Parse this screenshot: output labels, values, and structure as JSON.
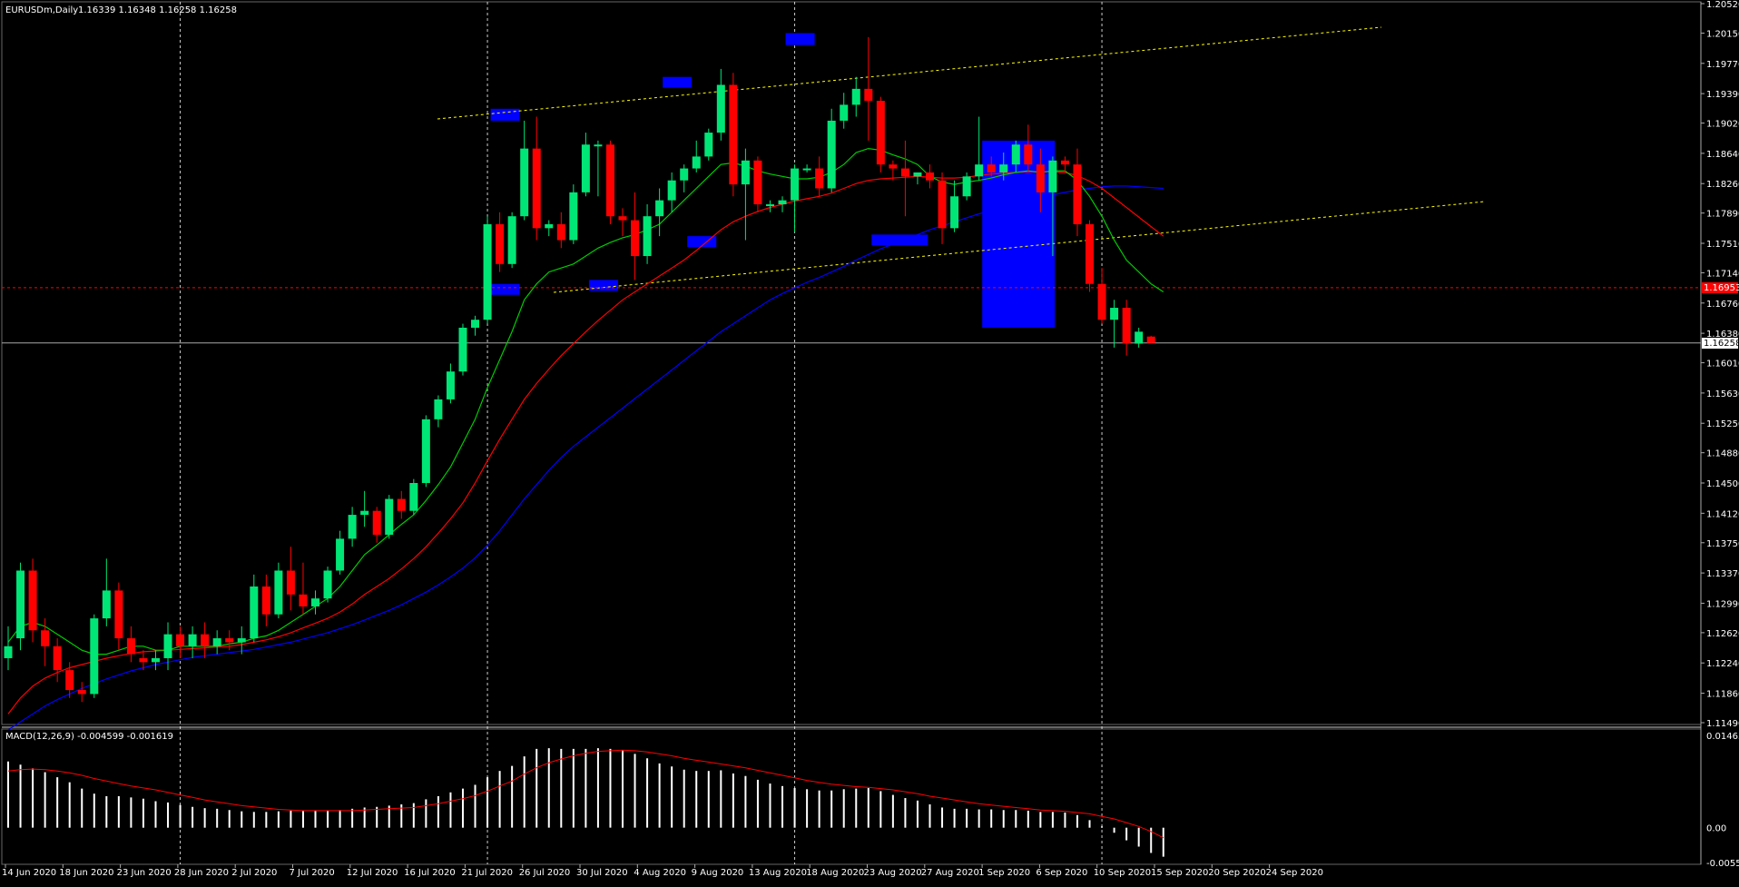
{
  "header": {
    "symbol_line": "EURUSDm,Daily",
    "ohlc_line": "1.16339 1.16348 1.16258 1.16258"
  },
  "macd": {
    "label": "MACD(12,26,9) -0.004599 -0.001619",
    "axis_labels": [
      "0.014637",
      "0.00",
      "-0.005515"
    ],
    "range": [
      -0.005515,
      0.014637
    ]
  },
  "price_tags": {
    "red_line": "1.16953",
    "current": "1.16258"
  },
  "colors": {
    "background": "#000000",
    "bull_candle": "#00e676",
    "bear_candle": "#ff0000",
    "ma_fast": "#00cc00",
    "ma_medium": "#ff0000",
    "ma_slow": "#0000ff",
    "trendline": "#ffff00",
    "highlight": "#0000ff",
    "grid_vertical": "#ffffff",
    "macd_histogram": "#ffffff",
    "macd_signal": "#ff0000"
  },
  "chart_data": {
    "type": "candlestick",
    "instrument": "EURUSDm",
    "timeframe": "Daily",
    "ylim": [
      1.1149,
      1.2052
    ],
    "y_ticks": [
      "1.20520",
      "1.20150",
      "1.19770",
      "1.19390",
      "1.19020",
      "1.18640",
      "1.18260",
      "1.17890",
      "1.17510",
      "1.17140",
      "1.16760",
      "1.16380",
      "1.16010",
      "1.15630",
      "1.15250",
      "1.14880",
      "1.14500",
      "1.14120",
      "1.13750",
      "1.13370",
      "1.12990",
      "1.12620",
      "1.12240",
      "1.11860",
      "1.11490"
    ],
    "x_labels": [
      "14 Jun 2020",
      "18 Jun 2020",
      "23 Jun 2020",
      "28 Jun 2020",
      "2 Jul 2020",
      "7 Jul 2020",
      "12 Jul 2020",
      "16 Jul 2020",
      "21 Jul 2020",
      "26 Jul 2020",
      "30 Jul 2020",
      "4 Aug 2020",
      "9 Aug 2020",
      "13 Aug 2020",
      "18 Aug 2020",
      "23 Aug 2020",
      "27 Aug 2020",
      "1 Sep 2020",
      "6 Sep 2020",
      "10 Sep 2020",
      "15 Sep 2020",
      "20 Sep 2020",
      "24 Sep 2020"
    ],
    "candles": [
      [
        1.123,
        1.127,
        1.1215,
        1.1245
      ],
      [
        1.1255,
        1.135,
        1.124,
        1.134
      ],
      [
        1.134,
        1.1355,
        1.125,
        1.1265
      ],
      [
        1.1265,
        1.128,
        1.122,
        1.1245
      ],
      [
        1.1245,
        1.1255,
        1.12,
        1.1215
      ],
      [
        1.1215,
        1.1225,
        1.118,
        1.119
      ],
      [
        1.119,
        1.12,
        1.1175,
        1.1185
      ],
      [
        1.1185,
        1.1285,
        1.118,
        1.128
      ],
      [
        1.128,
        1.1355,
        1.127,
        1.1315
      ],
      [
        1.1315,
        1.1325,
        1.124,
        1.1255
      ],
      [
        1.1255,
        1.127,
        1.1225,
        1.1235
      ],
      [
        1.123,
        1.124,
        1.1215,
        1.1225
      ],
      [
        1.1225,
        1.124,
        1.1215,
        1.123
      ],
      [
        1.123,
        1.1275,
        1.1215,
        1.126
      ],
      [
        1.126,
        1.127,
        1.123,
        1.1245
      ],
      [
        1.1245,
        1.127,
        1.123,
        1.126
      ],
      [
        1.126,
        1.1275,
        1.123,
        1.1245
      ],
      [
        1.1245,
        1.1265,
        1.1235,
        1.1255
      ],
      [
        1.1255,
        1.1265,
        1.124,
        1.125
      ],
      [
        1.125,
        1.127,
        1.1235,
        1.1255
      ],
      [
        1.1255,
        1.1335,
        1.125,
        1.132
      ],
      [
        1.132,
        1.1335,
        1.127,
        1.1285
      ],
      [
        1.1285,
        1.135,
        1.128,
        1.134
      ],
      [
        1.134,
        1.137,
        1.129,
        1.131
      ],
      [
        1.131,
        1.135,
        1.1285,
        1.1295
      ],
      [
        1.1295,
        1.1315,
        1.1285,
        1.1305
      ],
      [
        1.1305,
        1.1345,
        1.13,
        1.134
      ],
      [
        1.134,
        1.139,
        1.1335,
        1.138
      ],
      [
        1.138,
        1.142,
        1.137,
        1.141
      ],
      [
        1.141,
        1.144,
        1.1395,
        1.1415
      ],
      [
        1.1415,
        1.142,
        1.1375,
        1.1385
      ],
      [
        1.1385,
        1.1435,
        1.138,
        1.143
      ],
      [
        1.143,
        1.144,
        1.1405,
        1.1415
      ],
      [
        1.1415,
        1.1455,
        1.141,
        1.145
      ],
      [
        1.145,
        1.1535,
        1.1445,
        1.153
      ],
      [
        1.153,
        1.156,
        1.152,
        1.1555
      ],
      [
        1.1555,
        1.16,
        1.155,
        1.159
      ],
      [
        1.159,
        1.165,
        1.1585,
        1.1645
      ],
      [
        1.1645,
        1.166,
        1.1635,
        1.1655
      ],
      [
        1.1655,
        1.1785,
        1.165,
        1.1775
      ],
      [
        1.1775,
        1.179,
        1.1715,
        1.1725
      ],
      [
        1.1725,
        1.179,
        1.172,
        1.1785
      ],
      [
        1.1785,
        1.1905,
        1.178,
        1.187
      ],
      [
        1.187,
        1.191,
        1.1755,
        1.177
      ],
      [
        1.177,
        1.178,
        1.176,
        1.1775
      ],
      [
        1.1775,
        1.179,
        1.1745,
        1.1755
      ],
      [
        1.1755,
        1.1825,
        1.175,
        1.1815
      ],
      [
        1.1815,
        1.189,
        1.181,
        1.1875
      ],
      [
        1.1875,
        1.188,
        1.181,
        1.1875
      ],
      [
        1.1875,
        1.188,
        1.1775,
        1.1785
      ],
      [
        1.1785,
        1.1795,
        1.176,
        1.178
      ],
      [
        1.178,
        1.1815,
        1.1705,
        1.1735
      ],
      [
        1.1735,
        1.18,
        1.1725,
        1.1785
      ],
      [
        1.1785,
        1.182,
        1.176,
        1.1805
      ],
      [
        1.1805,
        1.184,
        1.179,
        1.183
      ],
      [
        1.183,
        1.185,
        1.1815,
        1.1845
      ],
      [
        1.1845,
        1.188,
        1.184,
        1.186
      ],
      [
        1.186,
        1.1895,
        1.1855,
        1.189
      ],
      [
        1.189,
        1.197,
        1.188,
        1.195
      ],
      [
        1.195,
        1.1965,
        1.181,
        1.1825
      ],
      [
        1.1825,
        1.187,
        1.1755,
        1.1855
      ],
      [
        1.1855,
        1.186,
        1.179,
        1.18
      ],
      [
        1.18,
        1.1805,
        1.179,
        1.18
      ],
      [
        1.18,
        1.181,
        1.179,
        1.1805
      ],
      [
        1.1805,
        1.185,
        1.1765,
        1.1845
      ],
      [
        1.1845,
        1.185,
        1.184,
        1.1845
      ],
      [
        1.1845,
        1.186,
        1.181,
        1.182
      ],
      [
        1.182,
        1.192,
        1.1815,
        1.1905
      ],
      [
        1.1905,
        1.194,
        1.1895,
        1.1925
      ],
      [
        1.1925,
        1.196,
        1.191,
        1.1945
      ],
      [
        1.1945,
        1.201,
        1.188,
        1.193
      ],
      [
        1.193,
        1.1935,
        1.184,
        1.185
      ],
      [
        1.185,
        1.1855,
        1.183,
        1.1845
      ],
      [
        1.1845,
        1.188,
        1.1785,
        1.1835
      ],
      [
        1.1835,
        1.184,
        1.1825,
        1.184
      ],
      [
        1.184,
        1.185,
        1.182,
        1.183
      ],
      [
        1.183,
        1.184,
        1.175,
        1.177
      ],
      [
        1.177,
        1.183,
        1.1765,
        1.181
      ],
      [
        1.181,
        1.184,
        1.1805,
        1.1835
      ],
      [
        1.1835,
        1.191,
        1.183,
        1.185
      ],
      [
        1.185,
        1.186,
        1.1835,
        1.184
      ],
      [
        1.184,
        1.1865,
        1.183,
        1.185
      ],
      [
        1.185,
        1.188,
        1.184,
        1.1875
      ],
      [
        1.1875,
        1.19,
        1.184,
        1.185
      ],
      [
        1.185,
        1.187,
        1.179,
        1.1815
      ],
      [
        1.1815,
        1.186,
        1.1735,
        1.1855
      ],
      [
        1.1855,
        1.186,
        1.184,
        1.185
      ],
      [
        1.185,
        1.187,
        1.176,
        1.1775
      ],
      [
        1.1775,
        1.178,
        1.169,
        1.17
      ],
      [
        1.17,
        1.172,
        1.165,
        1.1655
      ],
      [
        1.1655,
        1.168,
        1.162,
        1.167
      ],
      [
        1.167,
        1.168,
        1.161,
        1.1625
      ],
      [
        1.1625,
        1.1645,
        1.162,
        1.164
      ],
      [
        1.16339,
        1.16348,
        1.16258,
        1.16258
      ]
    ],
    "ma_fast": [
      1.125,
      1.127,
      1.1275,
      1.127,
      1.126,
      1.125,
      1.124,
      1.1235,
      1.1235,
      1.124,
      1.1245,
      1.1245,
      1.124,
      1.124,
      1.1245,
      1.1245,
      1.1245,
      1.1245,
      1.1248,
      1.125,
      1.1255,
      1.1258,
      1.1265,
      1.1275,
      1.1285,
      1.1295,
      1.1305,
      1.132,
      1.134,
      1.136,
      1.1372,
      1.1385,
      1.1398,
      1.141,
      1.1428,
      1.1448,
      1.147,
      1.15,
      1.153,
      1.157,
      1.1605,
      1.164,
      1.168,
      1.17,
      1.1715,
      1.172,
      1.1725,
      1.1735,
      1.1745,
      1.1752,
      1.1758,
      1.1762,
      1.1768,
      1.1775,
      1.179,
      1.1805,
      1.182,
      1.1835,
      1.185,
      1.1852,
      1.1848,
      1.1842,
      1.1838,
      1.1835,
      1.1832,
      1.1832,
      1.1834,
      1.184,
      1.185,
      1.1865,
      1.187,
      1.1868,
      1.1862,
      1.1857,
      1.185,
      1.1835,
      1.1828,
      1.1825,
      1.1828,
      1.183,
      1.1833,
      1.1837,
      1.184,
      1.1842,
      1.184,
      1.1842,
      1.1842,
      1.183,
      1.181,
      1.1785,
      1.1755,
      1.173,
      1.1715,
      1.17,
      1.169
    ],
    "ma_medium": [
      1.116,
      1.118,
      1.1195,
      1.1205,
      1.1212,
      1.1218,
      1.1222,
      1.1226,
      1.123,
      1.1233,
      1.1236,
      1.1238,
      1.1239,
      1.124,
      1.1241,
      1.1242,
      1.1243,
      1.1244,
      1.1245,
      1.1247,
      1.125,
      1.1253,
      1.1257,
      1.1262,
      1.1268,
      1.1274,
      1.128,
      1.1288,
      1.1298,
      1.131,
      1.132,
      1.133,
      1.1342,
      1.1355,
      1.137,
      1.1387,
      1.1405,
      1.1425,
      1.145,
      1.1478,
      1.1505,
      1.153,
      1.1555,
      1.1575,
      1.1593,
      1.161,
      1.1625,
      1.164,
      1.1654,
      1.1667,
      1.168,
      1.169,
      1.17,
      1.171,
      1.172,
      1.173,
      1.1742,
      1.1755,
      1.1768,
      1.1778,
      1.1785,
      1.1791,
      1.1796,
      1.18,
      1.1804,
      1.1807,
      1.181,
      1.1814,
      1.182,
      1.1826,
      1.183,
      1.1832,
      1.1833,
      1.1834,
      1.1835,
      1.1834,
      1.1833,
      1.1833,
      1.1834,
      1.1836,
      1.1838,
      1.1839,
      1.184,
      1.1841,
      1.1841,
      1.1841,
      1.184,
      1.1836,
      1.1829,
      1.182,
      1.1808,
      1.1796,
      1.1784,
      1.1772,
      1.176
    ],
    "ma_slow": [
      1.114,
      1.115,
      1.116,
      1.117,
      1.1178,
      1.1185,
      1.1192,
      1.1198,
      1.1204,
      1.1209,
      1.1214,
      1.1218,
      1.1222,
      1.1225,
      1.1228,
      1.1231,
      1.1233,
      1.1235,
      1.1237,
      1.1239,
      1.1241,
      1.1244,
      1.1247,
      1.125,
      1.1254,
      1.1258,
      1.1262,
      1.1267,
      1.1272,
      1.1278,
      1.1284,
      1.129,
      1.1297,
      1.1305,
      1.1313,
      1.1322,
      1.1332,
      1.1343,
      1.1356,
      1.1372,
      1.139,
      1.141,
      1.143,
      1.1448,
      1.1466,
      1.1482,
      1.1496,
      1.1508,
      1.152,
      1.1532,
      1.1544,
      1.1556,
      1.1568,
      1.158,
      1.1592,
      1.1604,
      1.1616,
      1.1628,
      1.164,
      1.165,
      1.166,
      1.167,
      1.168,
      1.1688,
      1.1695,
      1.1702,
      1.1708,
      1.1715,
      1.1722,
      1.173,
      1.1737,
      1.1744,
      1.175,
      1.1756,
      1.1762,
      1.1768,
      1.1773,
      1.1778,
      1.1783,
      1.1788,
      1.1792,
      1.1796,
      1.18,
      1.1804,
      1.1808,
      1.1812,
      1.1815,
      1.1818,
      1.182,
      1.1822,
      1.1823,
      1.1823,
      1.1822,
      1.1821,
      1.182
    ],
    "macd_histogram": [
      0.0105,
      0.01,
      0.0094,
      0.0088,
      0.008,
      0.0072,
      0.0062,
      0.0054,
      0.005,
      0.005,
      0.0048,
      0.0046,
      0.0042,
      0.004,
      0.0036,
      0.0033,
      0.0031,
      0.003,
      0.0028,
      0.0026,
      0.0025,
      0.0025,
      0.0026,
      0.0027,
      0.0027,
      0.0027,
      0.0027,
      0.0028,
      0.003,
      0.0032,
      0.0033,
      0.0035,
      0.0037,
      0.0039,
      0.0045,
      0.005,
      0.0056,
      0.0062,
      0.0068,
      0.008,
      0.009,
      0.0098,
      0.0113,
      0.0125,
      0.0126,
      0.0125,
      0.0125,
      0.0125,
      0.0126,
      0.0125,
      0.0123,
      0.0117,
      0.011,
      0.0102,
      0.0097,
      0.0092,
      0.009,
      0.009,
      0.0091,
      0.0086,
      0.0082,
      0.0076,
      0.007,
      0.0066,
      0.0063,
      0.0061,
      0.0059,
      0.0059,
      0.0061,
      0.0062,
      0.0063,
      0.0058,
      0.0052,
      0.0047,
      0.0043,
      0.0037,
      0.0032,
      0.003,
      0.003,
      0.0029,
      0.0029,
      0.0028,
      0.0028,
      0.0027,
      0.0025,
      0.0025,
      0.0024,
      0.002,
      0.0012,
      0.0002,
      -0.0008,
      -0.002,
      -0.003,
      -0.004,
      -0.0046
    ],
    "macd_signal": [
      0.009,
      0.0092,
      0.0093,
      0.0092,
      0.009,
      0.0087,
      0.0083,
      0.0078,
      0.0074,
      0.007,
      0.0066,
      0.0063,
      0.006,
      0.0056,
      0.0052,
      0.0048,
      0.0044,
      0.0041,
      0.0038,
      0.0035,
      0.0033,
      0.0031,
      0.0029,
      0.0028,
      0.0027,
      0.0027,
      0.0027,
      0.0027,
      0.0027,
      0.0028,
      0.0029,
      0.003,
      0.0031,
      0.0032,
      0.0035,
      0.0038,
      0.0042,
      0.0046,
      0.0051,
      0.0058,
      0.0066,
      0.0074,
      0.0085,
      0.0095,
      0.0103,
      0.0109,
      0.0114,
      0.0118,
      0.0121,
      0.0122,
      0.0123,
      0.0122,
      0.012,
      0.0117,
      0.0114,
      0.011,
      0.0107,
      0.0104,
      0.0101,
      0.0098,
      0.0095,
      0.0091,
      0.0087,
      0.0083,
      0.0079,
      0.0075,
      0.0072,
      0.0069,
      0.0067,
      0.0065,
      0.0064,
      0.0062,
      0.006,
      0.0057,
      0.0054,
      0.005,
      0.0047,
      0.0044,
      0.0041,
      0.0038,
      0.0036,
      0.0034,
      0.0032,
      0.003,
      0.0028,
      0.0027,
      0.0026,
      0.0024,
      0.0022,
      0.0018,
      0.0014,
      0.0008,
      0.0002,
      -0.0006,
      -0.0016
    ],
    "red_line_price": 1.16953,
    "current_price": 1.16258
  }
}
